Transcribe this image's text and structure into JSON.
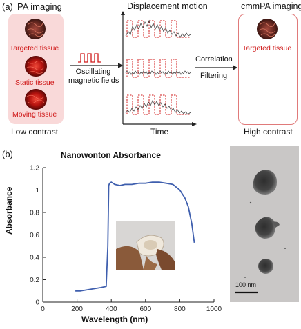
{
  "panel_a": {
    "label": "(a)",
    "pa_title": "PA imaging",
    "targeted": "Targeted tissue",
    "static": "Static tissue",
    "moving": "Moving tissue",
    "low_contrast": "Low contrast",
    "osc_line1": "Oscillating",
    "osc_line2": "magnetic fields",
    "disp_title": "Displacement motion",
    "time": "Time",
    "correlation": "Correlation",
    "filtering": "Filtering",
    "cmm_title": "cmmPA imaging",
    "targeted_out": "Targeted tissue",
    "high_contrast": "High contrast"
  },
  "panel_b": {
    "label": "(b)",
    "scale_bar": "100 nm"
  },
  "chart_data": {
    "type": "line",
    "title": "Nanowonton Absorbance",
    "xlabel": "Wavelength (nm)",
    "ylabel": "Absorbance",
    "xlim": [
      0,
      1000
    ],
    "ylim": [
      0,
      1.2
    ],
    "xticks": [
      "0",
      "200",
      "400",
      "600",
      "800",
      "1000"
    ],
    "yticks": [
      "0",
      "0.2",
      "0.4",
      "0.6",
      "0.8",
      "1",
      "1.2"
    ],
    "grid": false,
    "series": [
      {
        "color": "#3f5fae",
        "x": [
          190,
          220,
          260,
          300,
          340,
          370,
          380,
          385,
          390,
          400,
          420,
          450,
          480,
          520,
          560,
          600,
          640,
          680,
          720,
          760,
          800,
          830,
          850,
          870,
          885
        ],
        "y": [
          0.1,
          0.1,
          0.11,
          0.12,
          0.13,
          0.14,
          0.5,
          1.04,
          1.06,
          1.07,
          1.05,
          1.04,
          1.05,
          1.05,
          1.06,
          1.06,
          1.07,
          1.07,
          1.06,
          1.05,
          1.0,
          0.93,
          0.85,
          0.7,
          0.53
        ]
      }
    ]
  }
}
